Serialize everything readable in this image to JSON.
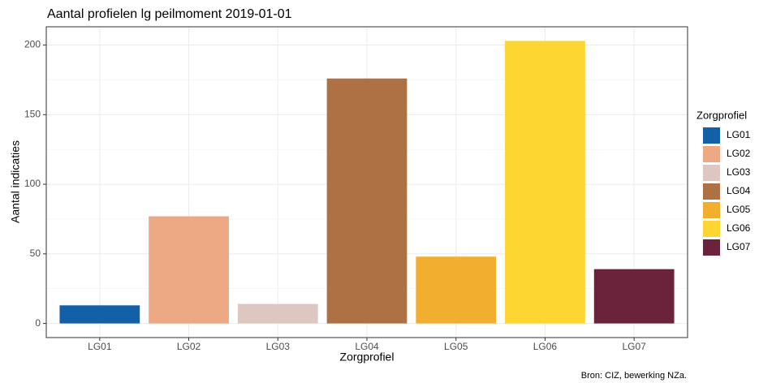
{
  "chart_data": {
    "type": "bar",
    "title": "Aantal profielen lg peilmoment 2019-01-01",
    "x_label": "Zorgprofiel",
    "y_label": "Aantal indicaties",
    "legend_title": "Zorgprofiel",
    "caption": "Bron: CIZ, bewerking NZa.",
    "categories": [
      "LG01",
      "LG02",
      "LG03",
      "LG04",
      "LG05",
      "LG06",
      "LG07"
    ],
    "values": [
      13,
      77,
      14,
      176,
      48,
      203,
      39
    ],
    "colors": [
      "#1261a8",
      "#eda984",
      "#dfc7c1",
      "#ad7143",
      "#f2ae2e",
      "#fdd631",
      "#6b233b"
    ],
    "ylim": [
      -10.15,
      213.15
    ],
    "yticks": [
      0,
      50,
      100,
      150,
      200
    ],
    "y_minor_ticks": [
      25,
      75,
      125,
      175
    ],
    "grid": true,
    "legend": "right"
  }
}
